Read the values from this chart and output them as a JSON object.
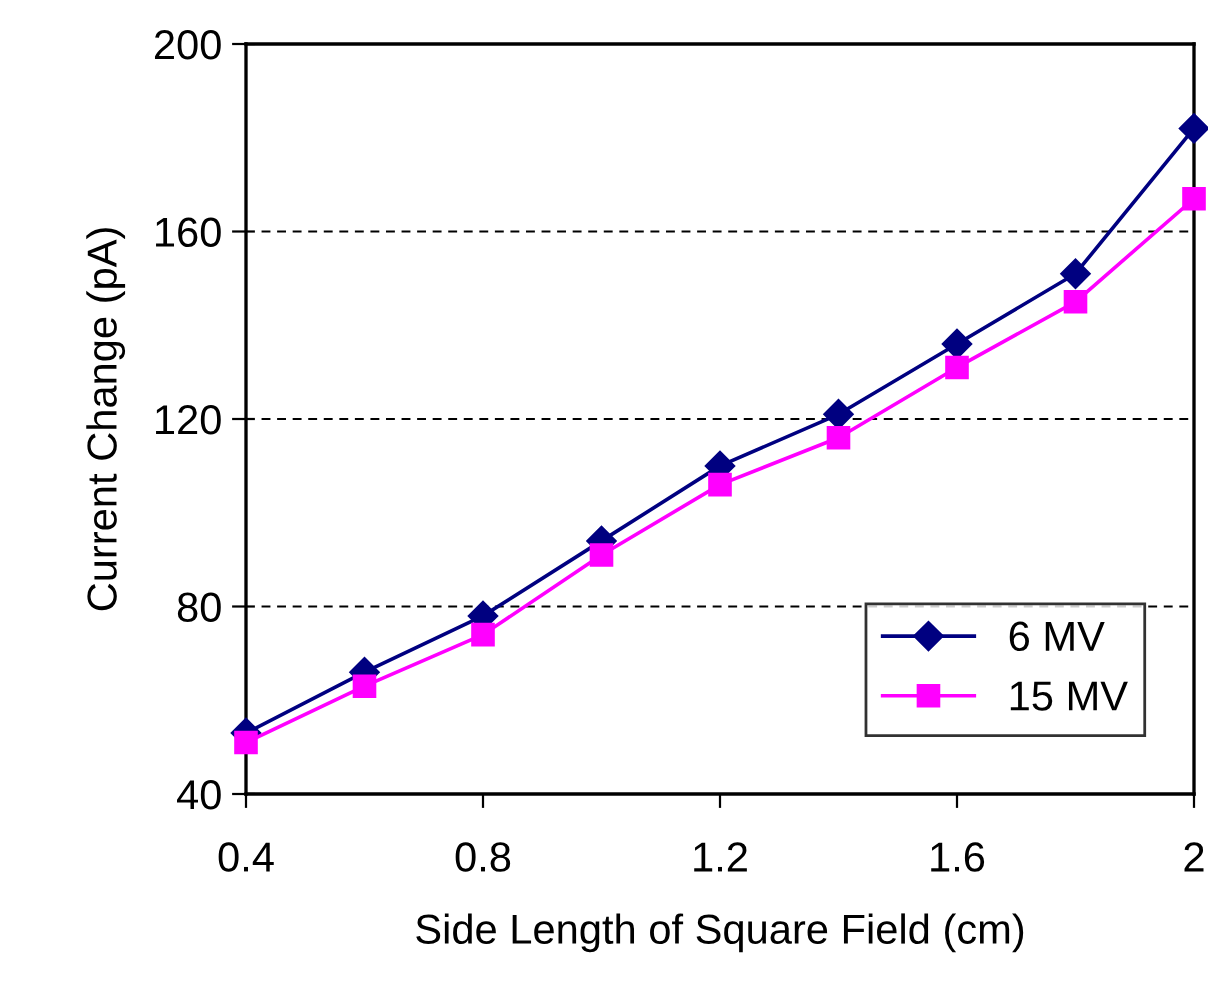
{
  "chart_data": {
    "type": "line",
    "xlabel": "Side Length of Square Field (cm)",
    "ylabel": "Current Change (pA)",
    "x": [
      0.4,
      0.6,
      0.8,
      1.0,
      1.2,
      1.4,
      1.6,
      1.8,
      2.0
    ],
    "series": [
      {
        "name": "6 MV",
        "color": "#000080",
        "marker": "diamond",
        "values": [
          53,
          66,
          78,
          94,
          110,
          121,
          136,
          151,
          182
        ]
      },
      {
        "name": "15 MV",
        "color": "#ff00ff",
        "marker": "square",
        "values": [
          51,
          63,
          74,
          91,
          106,
          116,
          131,
          145,
          167
        ]
      }
    ],
    "xlim": [
      0.4,
      2.0
    ],
    "xticks": [
      0.4,
      0.8,
      1.2,
      1.6,
      {
        "value": 2.0,
        "label": "2"
      }
    ],
    "ylim": [
      40,
      200
    ],
    "yticks": [
      40,
      80,
      120,
      160,
      200
    ],
    "grid": "y",
    "legend": "bottom right",
    "line_style": "solid"
  }
}
